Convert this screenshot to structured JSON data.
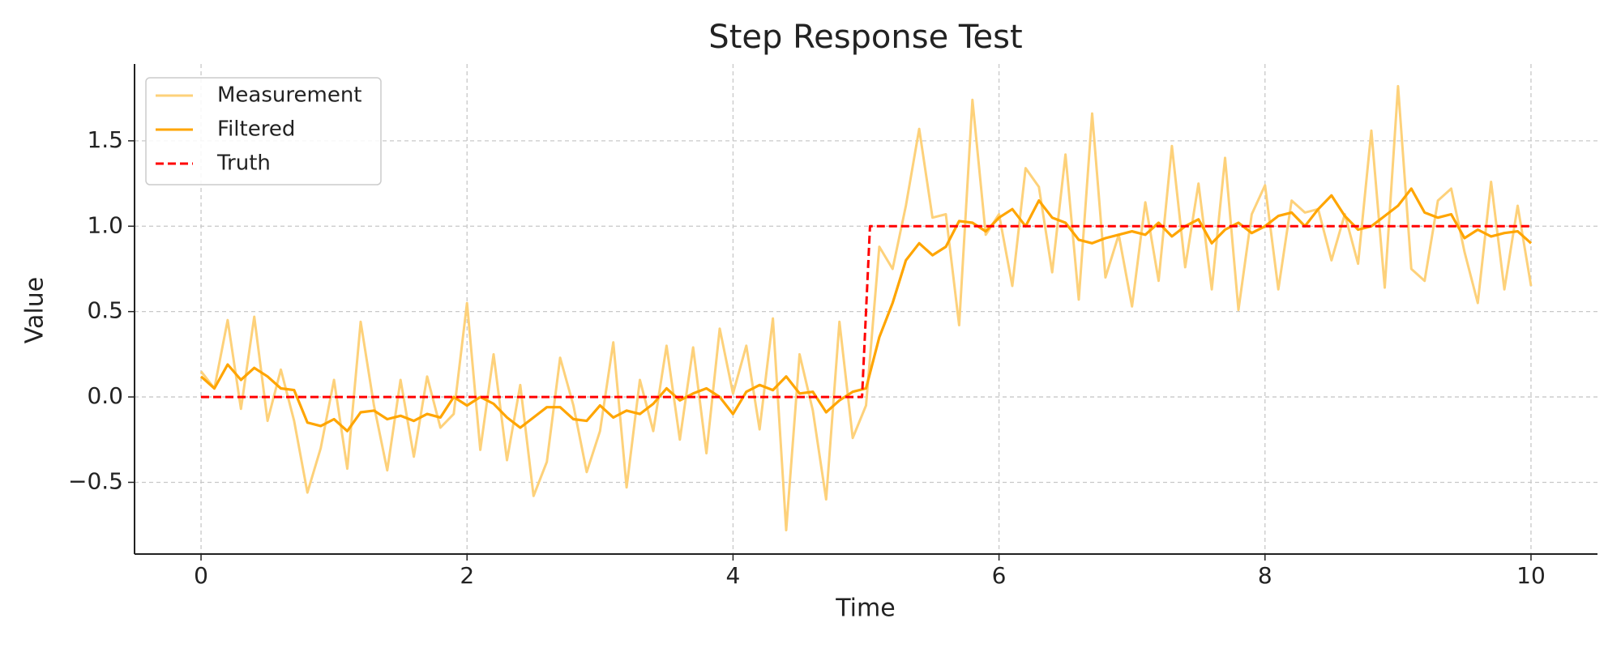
{
  "chart_data": {
    "type": "line",
    "title": "Step Response Test",
    "x_label": "Time",
    "y_label": "Value",
    "x": [
      0,
      0.1,
      0.2,
      0.3,
      0.4,
      0.5,
      0.6,
      0.7,
      0.8,
      0.9,
      1,
      1.1,
      1.2,
      1.3,
      1.4,
      1.5,
      1.6,
      1.7,
      1.8,
      1.9,
      2,
      2.1,
      2.2,
      2.3,
      2.4,
      2.5,
      2.6,
      2.7,
      2.8,
      2.9,
      3,
      3.1,
      3.2,
      3.3,
      3.4,
      3.5,
      3.6,
      3.7,
      3.8,
      3.9,
      4,
      4.1,
      4.2,
      4.3,
      4.4,
      4.5,
      4.6,
      4.7,
      4.8,
      4.9,
      5,
      5.1,
      5.2,
      5.3,
      5.4,
      5.5,
      5.6,
      5.7,
      5.8,
      5.9,
      6,
      6.1,
      6.2,
      6.3,
      6.4,
      6.5,
      6.6,
      6.7,
      6.8,
      6.9,
      7,
      7.1,
      7.2,
      7.3,
      7.4,
      7.5,
      7.6,
      7.7,
      7.8,
      7.9,
      8,
      8.1,
      8.2,
      8.3,
      8.4,
      8.5,
      8.6,
      8.7,
      8.8,
      8.9,
      9,
      9.1,
      9.2,
      9.3,
      9.4,
      9.5,
      9.6,
      9.7,
      9.8,
      9.9,
      10
    ],
    "series": [
      {
        "name": "Measurement",
        "color": "#fdd17a",
        "linestyle": "solid",
        "values": [
          0.15,
          0.05,
          0.45,
          -0.07,
          0.47,
          -0.14,
          0.16,
          -0.14,
          -0.56,
          -0.3,
          0.1,
          -0.42,
          0.44,
          -0.05,
          -0.43,
          0.1,
          -0.35,
          0.12,
          -0.18,
          -0.1,
          0.55,
          -0.31,
          0.25,
          -0.37,
          0.07,
          -0.58,
          -0.38,
          0.23,
          -0.05,
          -0.44,
          -0.2,
          0.32,
          -0.53,
          0.1,
          -0.2,
          0.3,
          -0.25,
          0.29,
          -0.33,
          0.4,
          0.02,
          0.3,
          -0.19,
          0.46,
          -0.78,
          0.25,
          -0.08,
          -0.6,
          0.44,
          -0.24,
          -0.05,
          0.88,
          0.75,
          1.12,
          1.57,
          1.05,
          1.07,
          0.42,
          1.74,
          0.95,
          1.07,
          0.65,
          1.34,
          1.23,
          0.73,
          1.42,
          0.57,
          1.66,
          0.7,
          0.95,
          0.53,
          1.14,
          0.68,
          1.47,
          0.76,
          1.25,
          0.63,
          1.4,
          0.51,
          1.07,
          1.24,
          0.63,
          1.15,
          1.08,
          1.1,
          0.8,
          1.07,
          0.78,
          1.56,
          0.64,
          1.82,
          0.75,
          0.68,
          1.15,
          1.22,
          0.85,
          0.55,
          1.26,
          0.63,
          1.12,
          0.65
        ]
      },
      {
        "name": "Filtered",
        "color": "#ffa500",
        "linestyle": "solid",
        "values": [
          0.12,
          0.05,
          0.19,
          0.1,
          0.17,
          0.12,
          0.05,
          0.04,
          -0.15,
          -0.17,
          -0.13,
          -0.2,
          -0.09,
          -0.08,
          -0.13,
          -0.11,
          -0.14,
          -0.1,
          -0.12,
          0,
          -0.05,
          0,
          -0.04,
          -0.12,
          -0.18,
          -0.12,
          -0.06,
          -0.06,
          -0.13,
          -0.14,
          -0.05,
          -0.12,
          -0.08,
          -0.1,
          -0.04,
          0.05,
          -0.02,
          0.02,
          0.05,
          0,
          -0.1,
          0.03,
          0.07,
          0.04,
          0.12,
          0.02,
          0.03,
          -0.09,
          -0.02,
          0.03,
          0.05,
          0.35,
          0.55,
          0.8,
          0.9,
          0.83,
          0.88,
          1.03,
          1.02,
          0.97,
          1.05,
          1.1,
          1,
          1.15,
          1.05,
          1.02,
          0.92,
          0.9,
          0.93,
          0.95,
          0.97,
          0.95,
          1.02,
          0.94,
          1,
          1.04,
          0.9,
          0.98,
          1.02,
          0.96,
          1,
          1.06,
          1.08,
          1,
          1.1,
          1.18,
          1.06,
          0.98,
          1,
          1.06,
          1.12,
          1.22,
          1.08,
          1.05,
          1.07,
          0.93,
          0.98,
          0.94,
          0.96,
          0.97,
          0.9
        ]
      },
      {
        "name": "Truth",
        "color": "#ff0000",
        "linestyle": "dashed",
        "x": [
          0,
          4.97,
          5.03,
          10
        ],
        "values": [
          0,
          0,
          1,
          1
        ]
      }
    ],
    "xlim": [
      -0.5,
      10.5
    ],
    "ylim": [
      -0.92,
      1.95
    ],
    "xticks": [
      0,
      2,
      4,
      6,
      8,
      10
    ],
    "yticks": [
      {
        "value": -0.5,
        "label": "−0.5"
      },
      {
        "value": 0,
        "label": "0.0"
      },
      {
        "value": 0.5,
        "label": "0.5"
      },
      {
        "value": 1,
        "label": "1.0"
      },
      {
        "value": 1.5,
        "label": "1.5"
      }
    ],
    "grid": true,
    "legend": "upper-left"
  }
}
